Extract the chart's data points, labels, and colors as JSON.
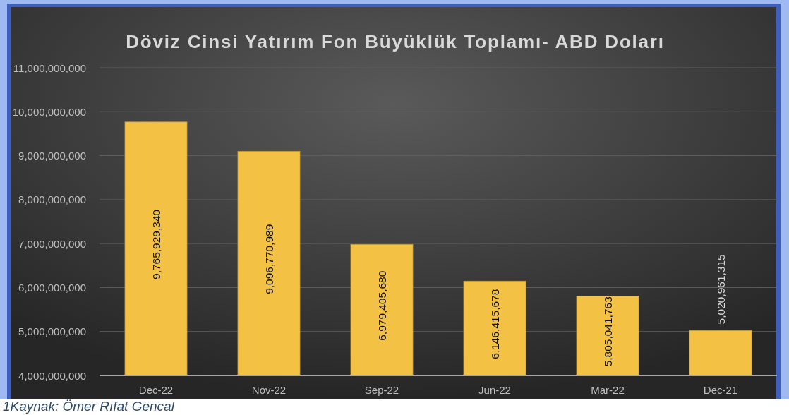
{
  "chart_data": {
    "type": "bar",
    "title": "Döviz Cinsi Yatırım Fon Büyüklük Toplamı- ABD Doları",
    "categories": [
      "Dec-22",
      "Nov-22",
      "Sep-22",
      "Jun-22",
      "Mar-22",
      "Dec-21"
    ],
    "values": [
      9765929340,
      9096770989,
      6979405680,
      6146415678,
      5805041763,
      5020961315
    ],
    "value_labels": [
      "9,765,929,340",
      "9,096,770,989",
      "6,979,405,680",
      "6,146,415,678",
      "5,805,041,763",
      "5,020,961,315"
    ],
    "color": "#f3c143",
    "ylim": [
      4000000000,
      11000000000
    ],
    "yticks": [
      {
        "value": 4000000000,
        "label": "4,000,000,000"
      },
      {
        "value": 5000000000,
        "label": "5,000,000,000"
      },
      {
        "value": 6000000000,
        "label": "6,000,000,000"
      },
      {
        "value": 7000000000,
        "label": "7,000,000,000"
      },
      {
        "value": 8000000000,
        "label": "8,000,000,000"
      },
      {
        "value": 9000000000,
        "label": "9,000,000,000"
      },
      {
        "value": 10000000000,
        "label": "10,000,000,000"
      },
      {
        "value": 11000000000,
        "label": "11,000,000,000"
      }
    ],
    "grid": "y",
    "annotations": [
      "1Kaynak: Ömer Rıfat Gencal"
    ]
  }
}
